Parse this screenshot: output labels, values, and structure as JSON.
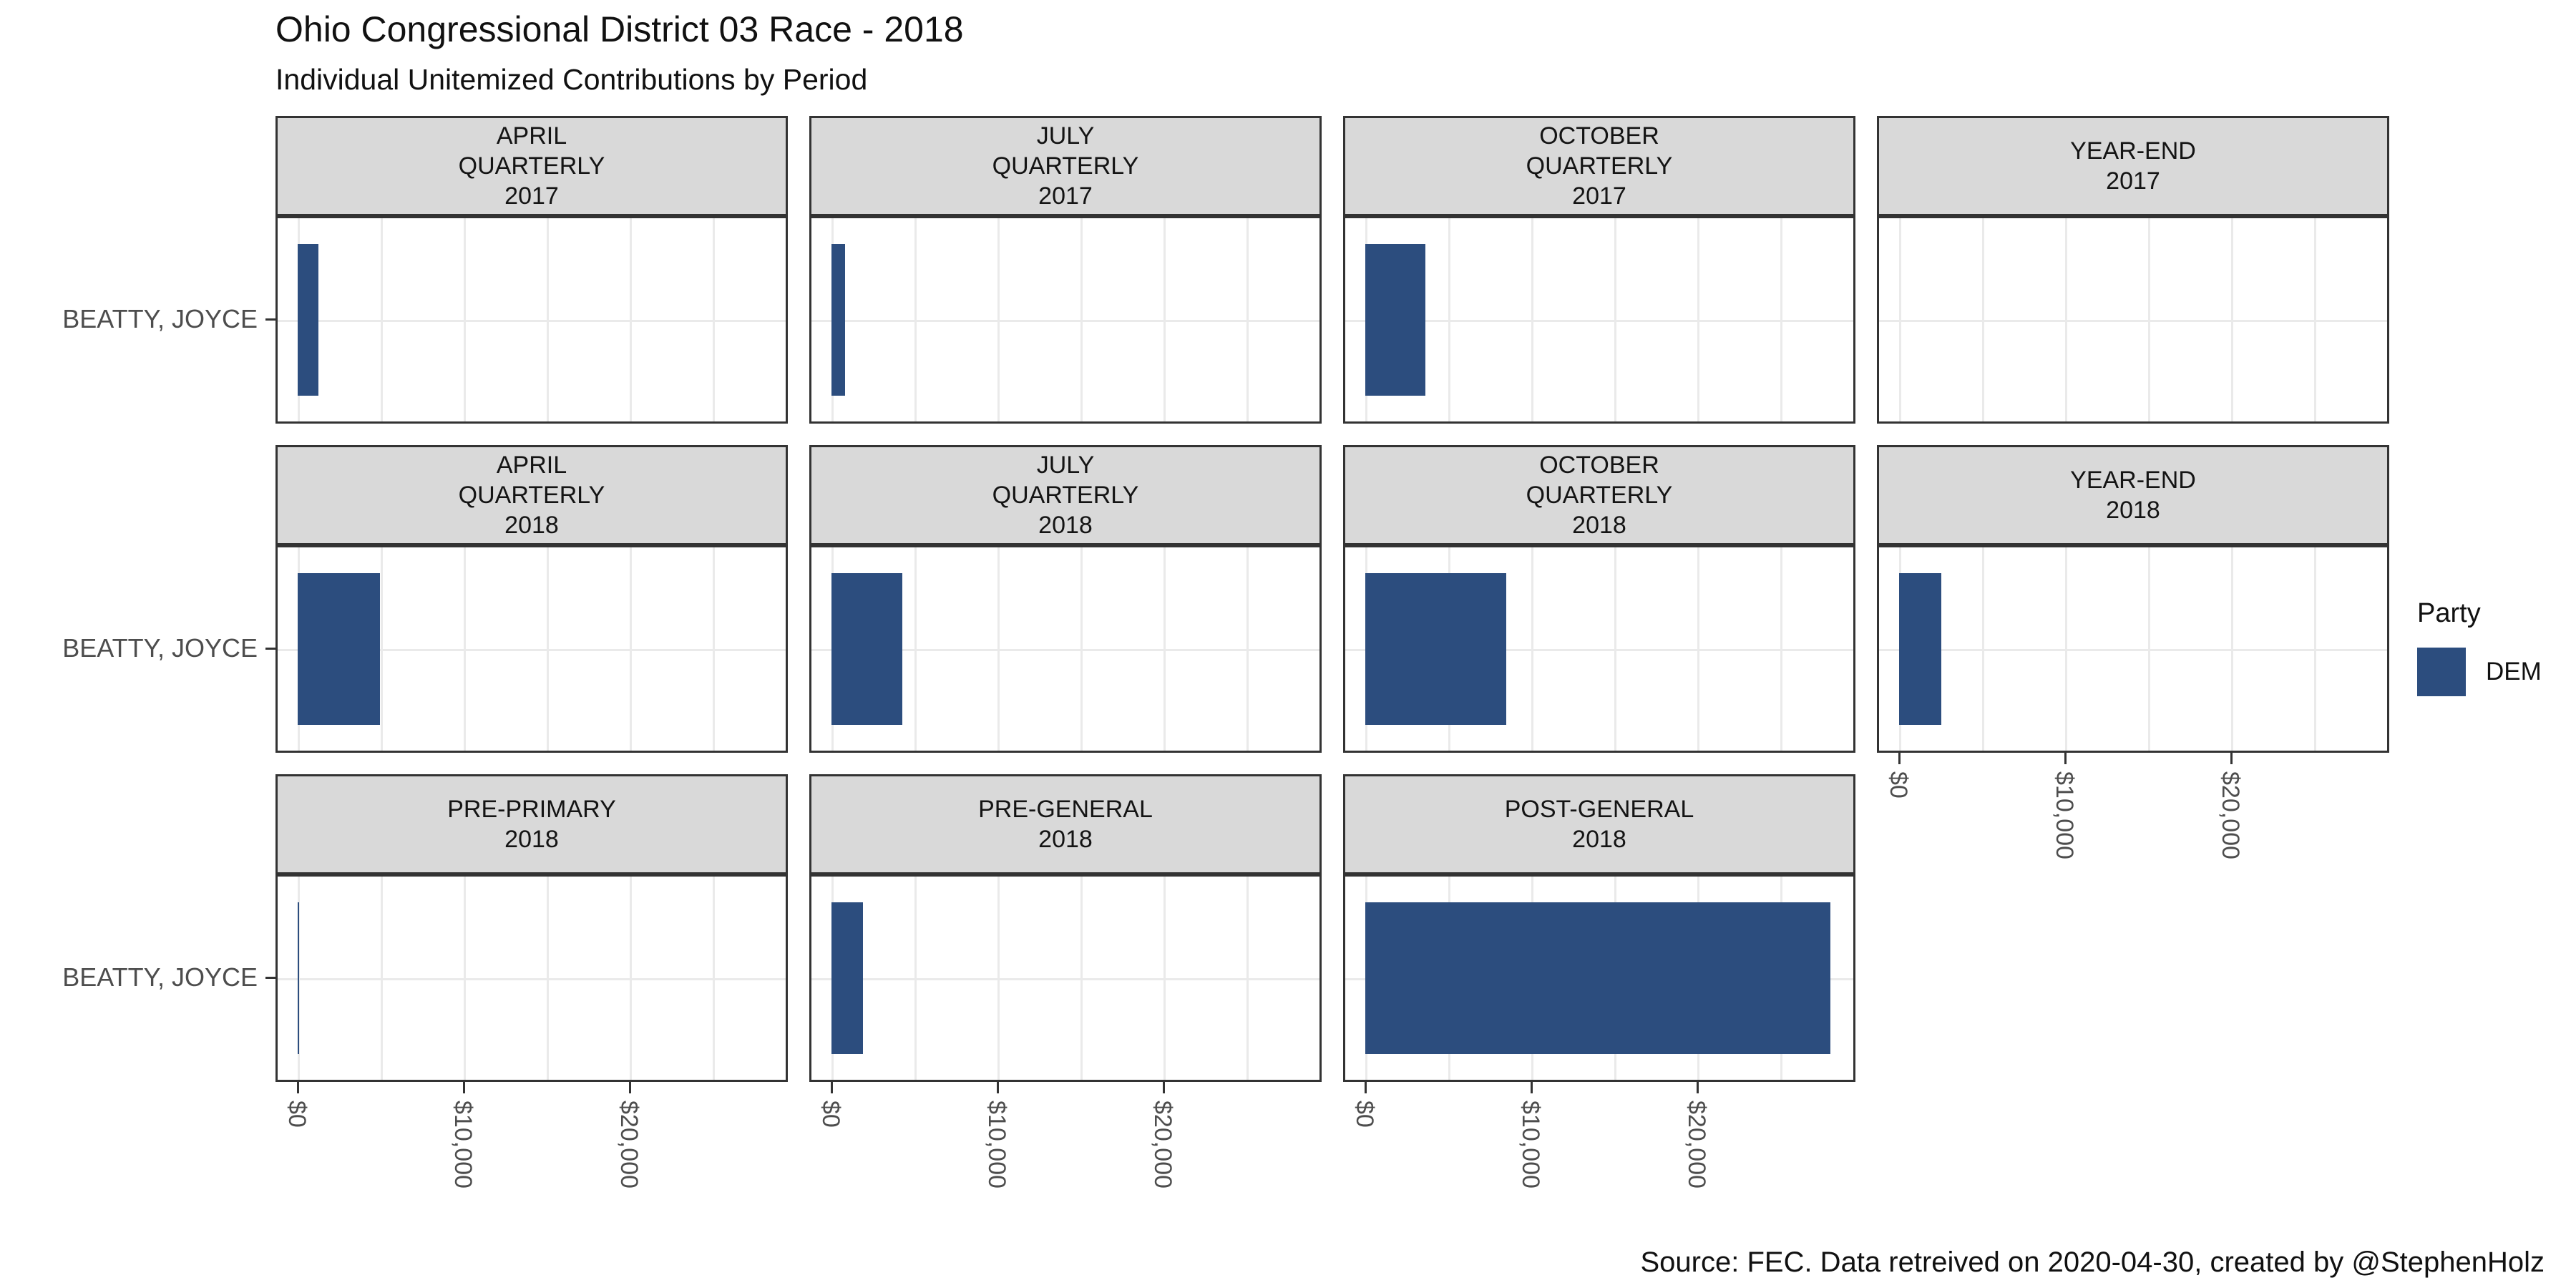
{
  "title": "Ohio Congressional District 03 Race - 2018",
  "subtitle": "Individual Unitemized Contributions by Period",
  "caption": "Source: FEC. Data retreived on 2020-04-30, created by @StephenHolz",
  "legend": {
    "title": "Party",
    "items": [
      {
        "label": "DEM",
        "color": "#2C4D7E"
      }
    ]
  },
  "colors": {
    "bar": "#2C4D7E",
    "strip_background": "#D9D9D9",
    "panel_border": "#333333",
    "gridline": "#EAEAEA",
    "axis_text": "#4D4D4D",
    "background": "#FFFFFF"
  },
  "chart_data": {
    "type": "bar",
    "orientation": "horizontal",
    "candidate": "BEATTY, JOYCE",
    "party": "DEM",
    "xlabel": "",
    "ylabel": "",
    "x_tick_labels": [
      "$0",
      "$10,000",
      "$20,000"
    ],
    "x_tick_values": [
      0,
      10000,
      20000
    ],
    "xlim": [
      0,
      29500
    ],
    "grid_interval": 5000,
    "legend_position": "right",
    "facets": [
      {
        "period": "APRIL QUARTERLY",
        "year": "2017",
        "label_lines": [
          "APRIL",
          "QUARTERLY",
          "2017"
        ],
        "value": 1250,
        "row": 0,
        "col": 0,
        "x_axis": false,
        "y_axis": true
      },
      {
        "period": "JULY QUARTERLY",
        "year": "2017",
        "label_lines": [
          "JULY",
          "QUARTERLY",
          "2017"
        ],
        "value": 800,
        "row": 0,
        "col": 1,
        "x_axis": false,
        "y_axis": false
      },
      {
        "period": "OCTOBER QUARTERLY",
        "year": "2017",
        "label_lines": [
          "OCTOBER",
          "QUARTERLY",
          "2017"
        ],
        "value": 3600,
        "row": 0,
        "col": 2,
        "x_axis": false,
        "y_axis": false
      },
      {
        "period": "YEAR-END",
        "year": "2017",
        "label_lines": [
          "YEAR-END",
          "2017"
        ],
        "value": 0,
        "row": 0,
        "col": 3,
        "x_axis": false,
        "y_axis": false
      },
      {
        "period": "APRIL QUARTERLY",
        "year": "2018",
        "label_lines": [
          "APRIL",
          "QUARTERLY",
          "2018"
        ],
        "value": 4950,
        "row": 1,
        "col": 0,
        "x_axis": false,
        "y_axis": true
      },
      {
        "period": "JULY QUARTERLY",
        "year": "2018",
        "label_lines": [
          "JULY",
          "QUARTERLY",
          "2018"
        ],
        "value": 4250,
        "row": 1,
        "col": 1,
        "x_axis": false,
        "y_axis": false
      },
      {
        "period": "OCTOBER QUARTERLY",
        "year": "2018",
        "label_lines": [
          "OCTOBER",
          "QUARTERLY",
          "2018"
        ],
        "value": 8500,
        "row": 1,
        "col": 2,
        "x_axis": false,
        "y_axis": false
      },
      {
        "period": "YEAR-END",
        "year": "2018",
        "label_lines": [
          "YEAR-END",
          "2018"
        ],
        "value": 2550,
        "row": 1,
        "col": 3,
        "x_axis": true,
        "y_axis": false
      },
      {
        "period": "PRE-PRIMARY",
        "year": "2018",
        "label_lines": [
          "PRE-PRIMARY",
          "2018"
        ],
        "value": 30,
        "row": 2,
        "col": 0,
        "x_axis": true,
        "y_axis": true
      },
      {
        "period": "PRE-GENERAL",
        "year": "2018",
        "label_lines": [
          "PRE-GENERAL",
          "2018"
        ],
        "value": 1900,
        "row": 2,
        "col": 1,
        "x_axis": true,
        "y_axis": false
      },
      {
        "period": "POST-GENERAL",
        "year": "2018",
        "label_lines": [
          "POST-GENERAL",
          "2018"
        ],
        "value": 28000,
        "row": 2,
        "col": 2,
        "x_axis": true,
        "y_axis": false
      }
    ]
  }
}
